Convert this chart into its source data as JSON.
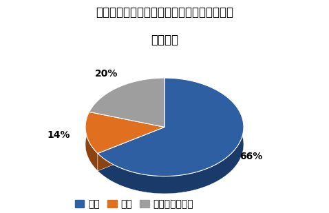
{
  "title_line1": "インプレッサスポーツの運転＆走行性能の満",
  "title_line2": "足度調査",
  "slices": [
    66,
    14,
    20
  ],
  "labels": [
    "満足",
    "不満",
    "どちらでもない"
  ],
  "colors": [
    "#2E5FA3",
    "#E07020",
    "#9E9E9E"
  ],
  "dark_colors": [
    "#1A3A6A",
    "#8B4410",
    "#6E6E6E"
  ],
  "pct_labels": [
    "66%",
    "14%",
    "20%"
  ],
  "startangle": 90,
  "background_color": "#FFFFFF",
  "title_fontsize": 12,
  "legend_fontsize": 9,
  "pct_fontsize": 10
}
